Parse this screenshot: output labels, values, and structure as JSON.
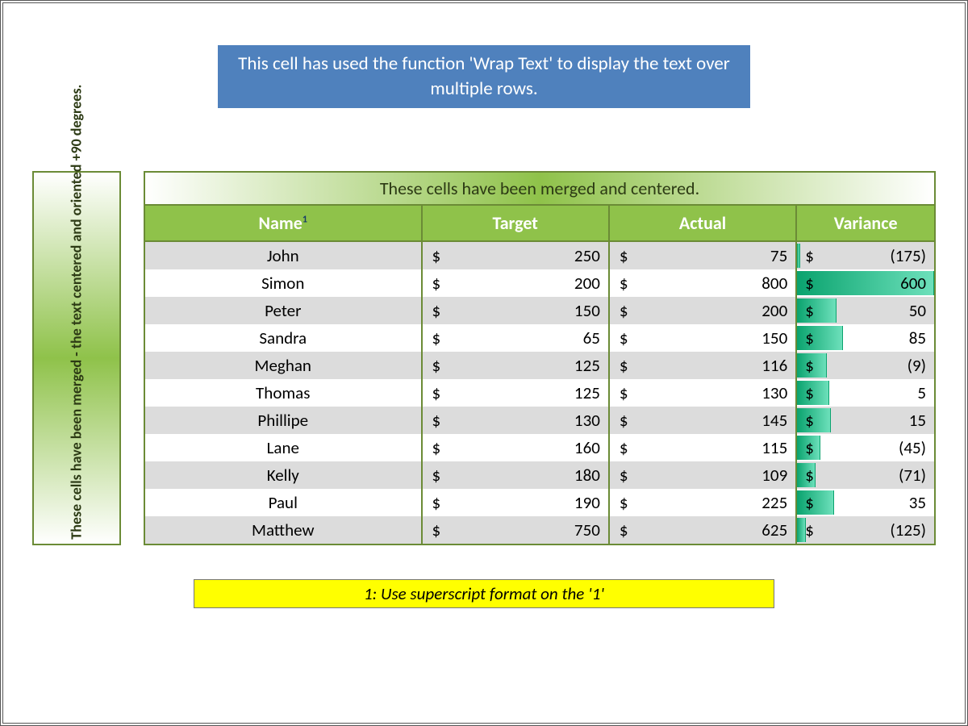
{
  "banner_text": "This cell has used the function 'Wrap Text' to display the text over multiple rows.",
  "vertical_text": "These cells have been merged - the text centered and oriented +90 degrees.",
  "merged_title": "These cells have been merged and centered.",
  "footnote": "1: Use superscript format on the '1'",
  "colors": {
    "banner_bg": "#4f81bd",
    "banner_fg": "#ffffff",
    "table_header_bg": "#8fc24a",
    "table_header_fg": "#ffffff",
    "table_border": "#6b8b36",
    "row_alt_bg": "#dcdcdc",
    "footnote_bg": "#ffff00",
    "bar_start": "#0aa36e",
    "bar_end": "#6de0bb",
    "superscript_color": "#163b69"
  },
  "columns": {
    "name": "Name",
    "superscript": "1",
    "target": "Target",
    "actual": "Actual",
    "variance": "Variance"
  },
  "currency_symbol": "$",
  "variance_bar": {
    "min": -175,
    "max": 600
  },
  "rows": [
    {
      "name": "John",
      "target": 250,
      "actual": 75,
      "variance": -175
    },
    {
      "name": "Simon",
      "target": 200,
      "actual": 800,
      "variance": 600
    },
    {
      "name": "Peter",
      "target": 150,
      "actual": 200,
      "variance": 50
    },
    {
      "name": "Sandra",
      "target": 65,
      "actual": 150,
      "variance": 85
    },
    {
      "name": "Meghan",
      "target": 125,
      "actual": 116,
      "variance": -9
    },
    {
      "name": "Thomas",
      "target": 125,
      "actual": 130,
      "variance": 5
    },
    {
      "name": "Phillipe",
      "target": 130,
      "actual": 145,
      "variance": 15
    },
    {
      "name": "Lane",
      "target": 160,
      "actual": 115,
      "variance": -45
    },
    {
      "name": "Kelly",
      "target": 180,
      "actual": 109,
      "variance": -71
    },
    {
      "name": "Paul",
      "target": 190,
      "actual": 225,
      "variance": 35
    },
    {
      "name": "Matthew",
      "target": 750,
      "actual": 625,
      "variance": -125
    }
  ]
}
